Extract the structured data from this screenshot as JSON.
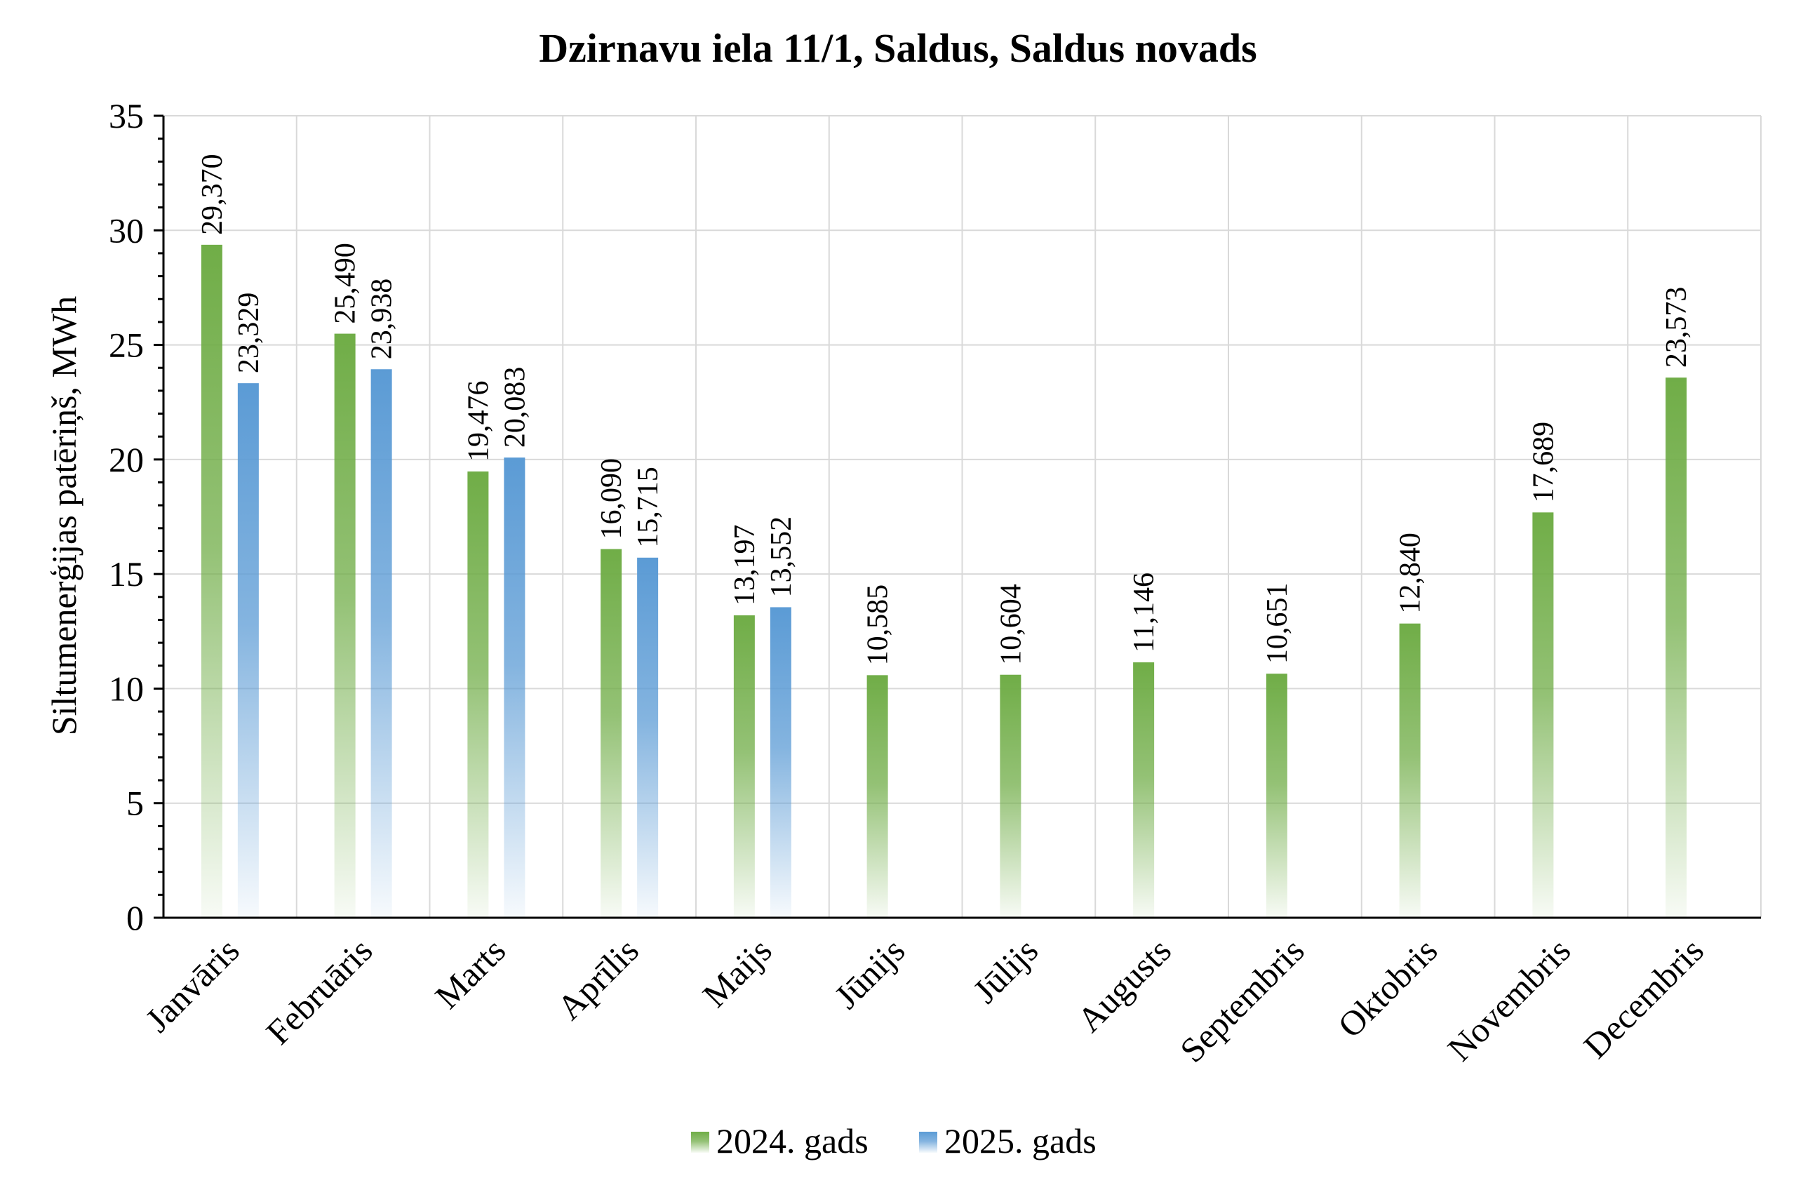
{
  "chart_data": {
    "type": "bar",
    "title": "Dzirnavu iela 11/1, Saldus, Saldus novads",
    "ylabel": "Siltumenerģijas patēriņš, MWh",
    "xlabel": "",
    "ylim": [
      0,
      35
    ],
    "yticks": [
      0,
      5,
      10,
      15,
      20,
      25,
      30,
      35
    ],
    "grid": true,
    "legend_position": "bottom",
    "categories": [
      "Janvāris",
      "Februāris",
      "Marts",
      "Aprīlis",
      "Maijs",
      "Jūnijs",
      "Jūlijs",
      "Augusts",
      "Septembris",
      "Oktobris",
      "Novembris",
      "Decembris"
    ],
    "series": [
      {
        "name": "2024. gads",
        "color": "#70ad47",
        "values": [
          29.37,
          25.49,
          19.476,
          16.09,
          13.197,
          10.585,
          10.604,
          11.146,
          10.651,
          12.84,
          17.689,
          23.573
        ],
        "labels": [
          "29,370",
          "25,490",
          "19,476",
          "16,090",
          "13,197",
          "10,585",
          "10,604",
          "11,146",
          "10,651",
          "12,840",
          "17,689",
          "23,573"
        ]
      },
      {
        "name": "2025. gads",
        "color": "#5b9bd5",
        "values": [
          23.329,
          23.938,
          20.083,
          15.715,
          13.552,
          null,
          null,
          null,
          null,
          null,
          null,
          null
        ],
        "labels": [
          "23,329",
          "23,938",
          "20,083",
          "15,715",
          "13,552",
          null,
          null,
          null,
          null,
          null,
          null,
          null
        ]
      }
    ]
  }
}
